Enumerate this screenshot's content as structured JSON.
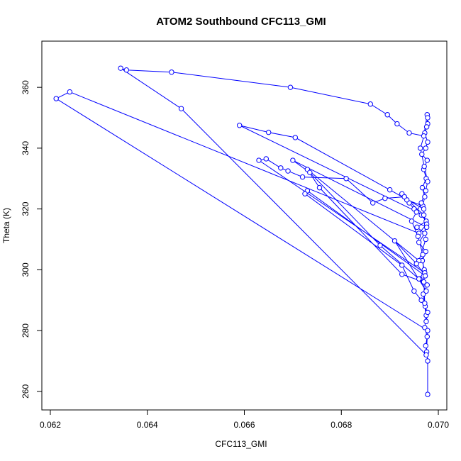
{
  "chart_data": {
    "type": "line",
    "title": "ATOM2 Southbound CFC113_GMI",
    "x_label": "CFC113_GMI",
    "y_label": "Theta (K)",
    "color": "#0000ff",
    "markers": true,
    "xlim": [
      0.061825,
      0.070175
    ],
    "ylim": [
      253.9,
      375.2
    ],
    "xticks": [
      0.062,
      0.064,
      0.066,
      0.068,
      {
        "value": 0.07,
        "label": "0.070"
      }
    ],
    "yticks": [
      260,
      280,
      300,
      320,
      340,
      360
    ],
    "x": [
      0.06978,
      0.06978,
      0.06976,
      0.06974,
      0.06977,
      0.06972,
      0.06975,
      0.06973,
      0.06969,
      0.06977,
      0.06962,
      0.06971,
      0.06967,
      0.06974,
      0.0696,
      0.06972,
      0.06956,
      0.06975,
      0.06965,
      0.0695,
      0.0694,
      0.0693,
      0.06925,
      0.06935,
      0.06968,
      0.06972,
      0.06967,
      0.06975,
      0.0697,
      0.06977,
      0.06966,
      0.06974,
      0.06978,
      0.06972,
      0.06978,
      0.06977,
      0.0697,
      0.0694,
      0.06915,
      0.06895,
      0.0686,
      0.06695,
      0.0645,
      0.06357,
      0.06345,
      0.0647,
      0.06975,
      0.06978,
      0.06212,
      0.0624,
      0.0696,
      0.06976,
      0.0697,
      0.0659,
      0.0665,
      0.06705,
      0.069,
      0.0697,
      0.06974,
      0.0696,
      0.0673,
      0.06755,
      0.06925,
      0.0697,
      0.06972,
      0.0663,
      0.06645,
      0.06675,
      0.0669,
      0.0672,
      0.0681,
      0.06865,
      0.0689,
      0.0693,
      0.0697,
      0.06976,
      0.067,
      0.06735,
      0.0688,
      0.0696,
      0.06975,
      0.0691,
      0.06955,
      0.06973,
      0.0673,
      0.06725,
      0.06925,
      0.0695,
      0.06965,
      0.06978,
      0.06975,
      0.06972,
      0.06968,
      0.06958,
      0.06945,
      0.06955,
      0.06965,
      0.06974,
      0.06978,
      0.06971,
      0.06963,
      0.06976,
      0.06978
    ],
    "values": [
      259,
      270,
      273,
      275,
      278,
      281,
      285,
      288,
      292,
      295,
      297,
      300,
      303,
      306,
      309,
      312,
      314,
      316,
      318,
      320,
      322,
      324,
      325,
      323,
      321,
      324,
      327,
      330,
      333,
      336,
      338,
      340,
      342,
      345,
      348,
      351,
      344,
      345,
      348,
      351,
      354.5,
      360,
      365,
      365.7,
      366.3,
      353,
      272,
      280,
      356.3,
      358.5,
      312,
      315,
      318,
      347.5,
      345.2,
      343.5,
      326.3,
      320,
      310,
      303,
      333,
      327,
      298.5,
      296,
      299,
      336,
      336.5,
      333.5,
      332.5,
      330.5,
      330,
      322,
      323.5,
      324,
      318,
      314,
      336,
      332,
      308,
      297,
      293,
      309.5,
      302,
      298,
      326,
      325,
      301.5,
      293,
      290,
      286,
      283,
      289,
      305,
      311,
      316,
      319,
      322,
      326,
      329,
      334,
      340,
      347,
      350
    ]
  }
}
